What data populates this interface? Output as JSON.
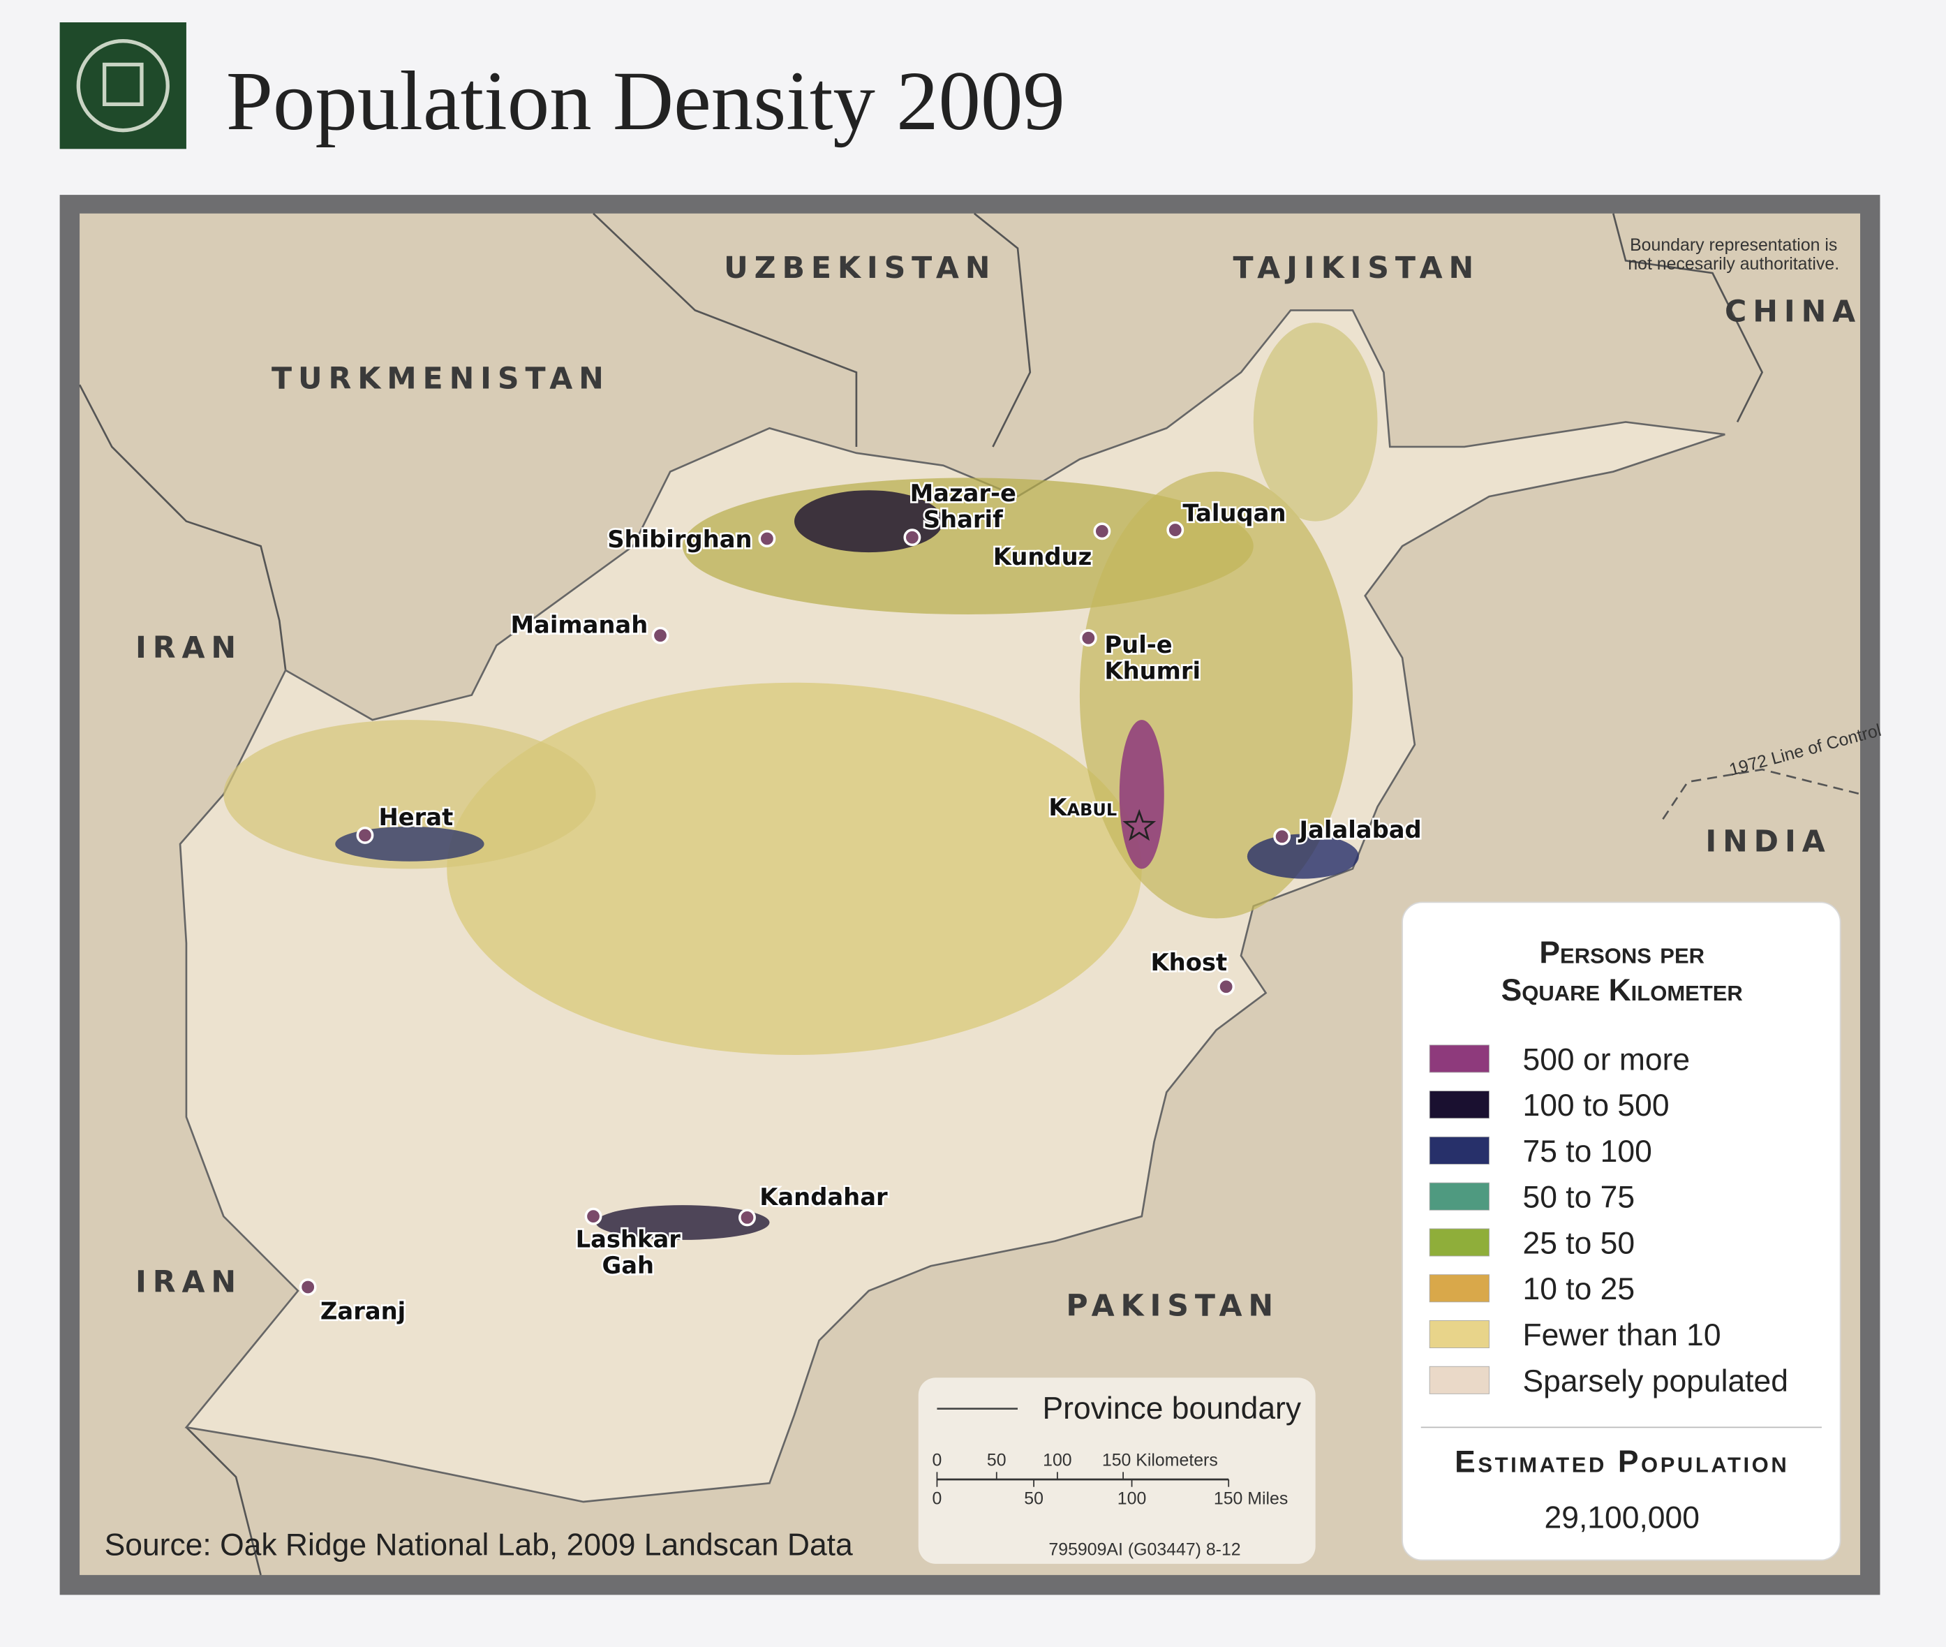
{
  "header": {
    "title": "Population Density 2009"
  },
  "map": {
    "countries": [
      "UZBEKISTAN",
      "TAJIKISTAN",
      "TURKMENISTAN",
      "IRAN",
      "IRAN",
      "CHINA",
      "INDIA",
      "PAKISTAN"
    ],
    "note": [
      "Boundary representation is",
      "not necesarily authoritative."
    ],
    "line_of_control": "1972 Line of Control",
    "cities": [
      {
        "label_lines": [
          "Mazar-e",
          "Sharif"
        ]
      },
      {
        "label_lines": [
          "Shibirghan"
        ]
      },
      {
        "label_lines": [
          "Kunduz"
        ]
      },
      {
        "label_lines": [
          "Taluqan"
        ]
      },
      {
        "label_lines": [
          "Maimanah"
        ]
      },
      {
        "label_lines": [
          "Pul-e",
          "Khumri"
        ]
      },
      {
        "label_lines": [
          "Kabul"
        ]
      },
      {
        "label_lines": [
          "Jalalabad"
        ]
      },
      {
        "label_lines": [
          "Herat"
        ]
      },
      {
        "label_lines": [
          "Khost"
        ]
      },
      {
        "label_lines": [
          "Kandahar"
        ]
      },
      {
        "label_lines": [
          "Lashkar",
          "Gah"
        ]
      },
      {
        "label_lines": [
          "Zaranj"
        ]
      }
    ]
  },
  "legend": {
    "title_lines": [
      "Persons per",
      "Square Kilometer"
    ],
    "items": [
      {
        "label": "500 or more",
        "color": "#8e3a7c"
      },
      {
        "label": "100 to 500",
        "color": "#1a1030"
      },
      {
        "label": "75 to 100",
        "color": "#27306a"
      },
      {
        "label": "50 to 75",
        "color": "#4f9a80"
      },
      {
        "label": "25 to 50",
        "color": "#8fae3a"
      },
      {
        "label": "10 to 25",
        "color": "#d9a84a"
      },
      {
        "label": "Fewer than 10",
        "color": "#e8d48a"
      },
      {
        "label": "Sparsely populated",
        "color": "#ead9c8"
      }
    ],
    "population_heading": "Estimated Population",
    "population": "29,100,000"
  },
  "scale_box": {
    "province_boundary": "Province boundary",
    "kilometers": [
      "0",
      "50",
      "100",
      "150 Kilometers"
    ],
    "miles": [
      "0",
      "50",
      "100",
      "150 Miles"
    ]
  },
  "footer": {
    "source": "Source: Oak Ridge National Lab, 2009 Landscan Data",
    "code": "795909AI (G03447) 8-12"
  }
}
